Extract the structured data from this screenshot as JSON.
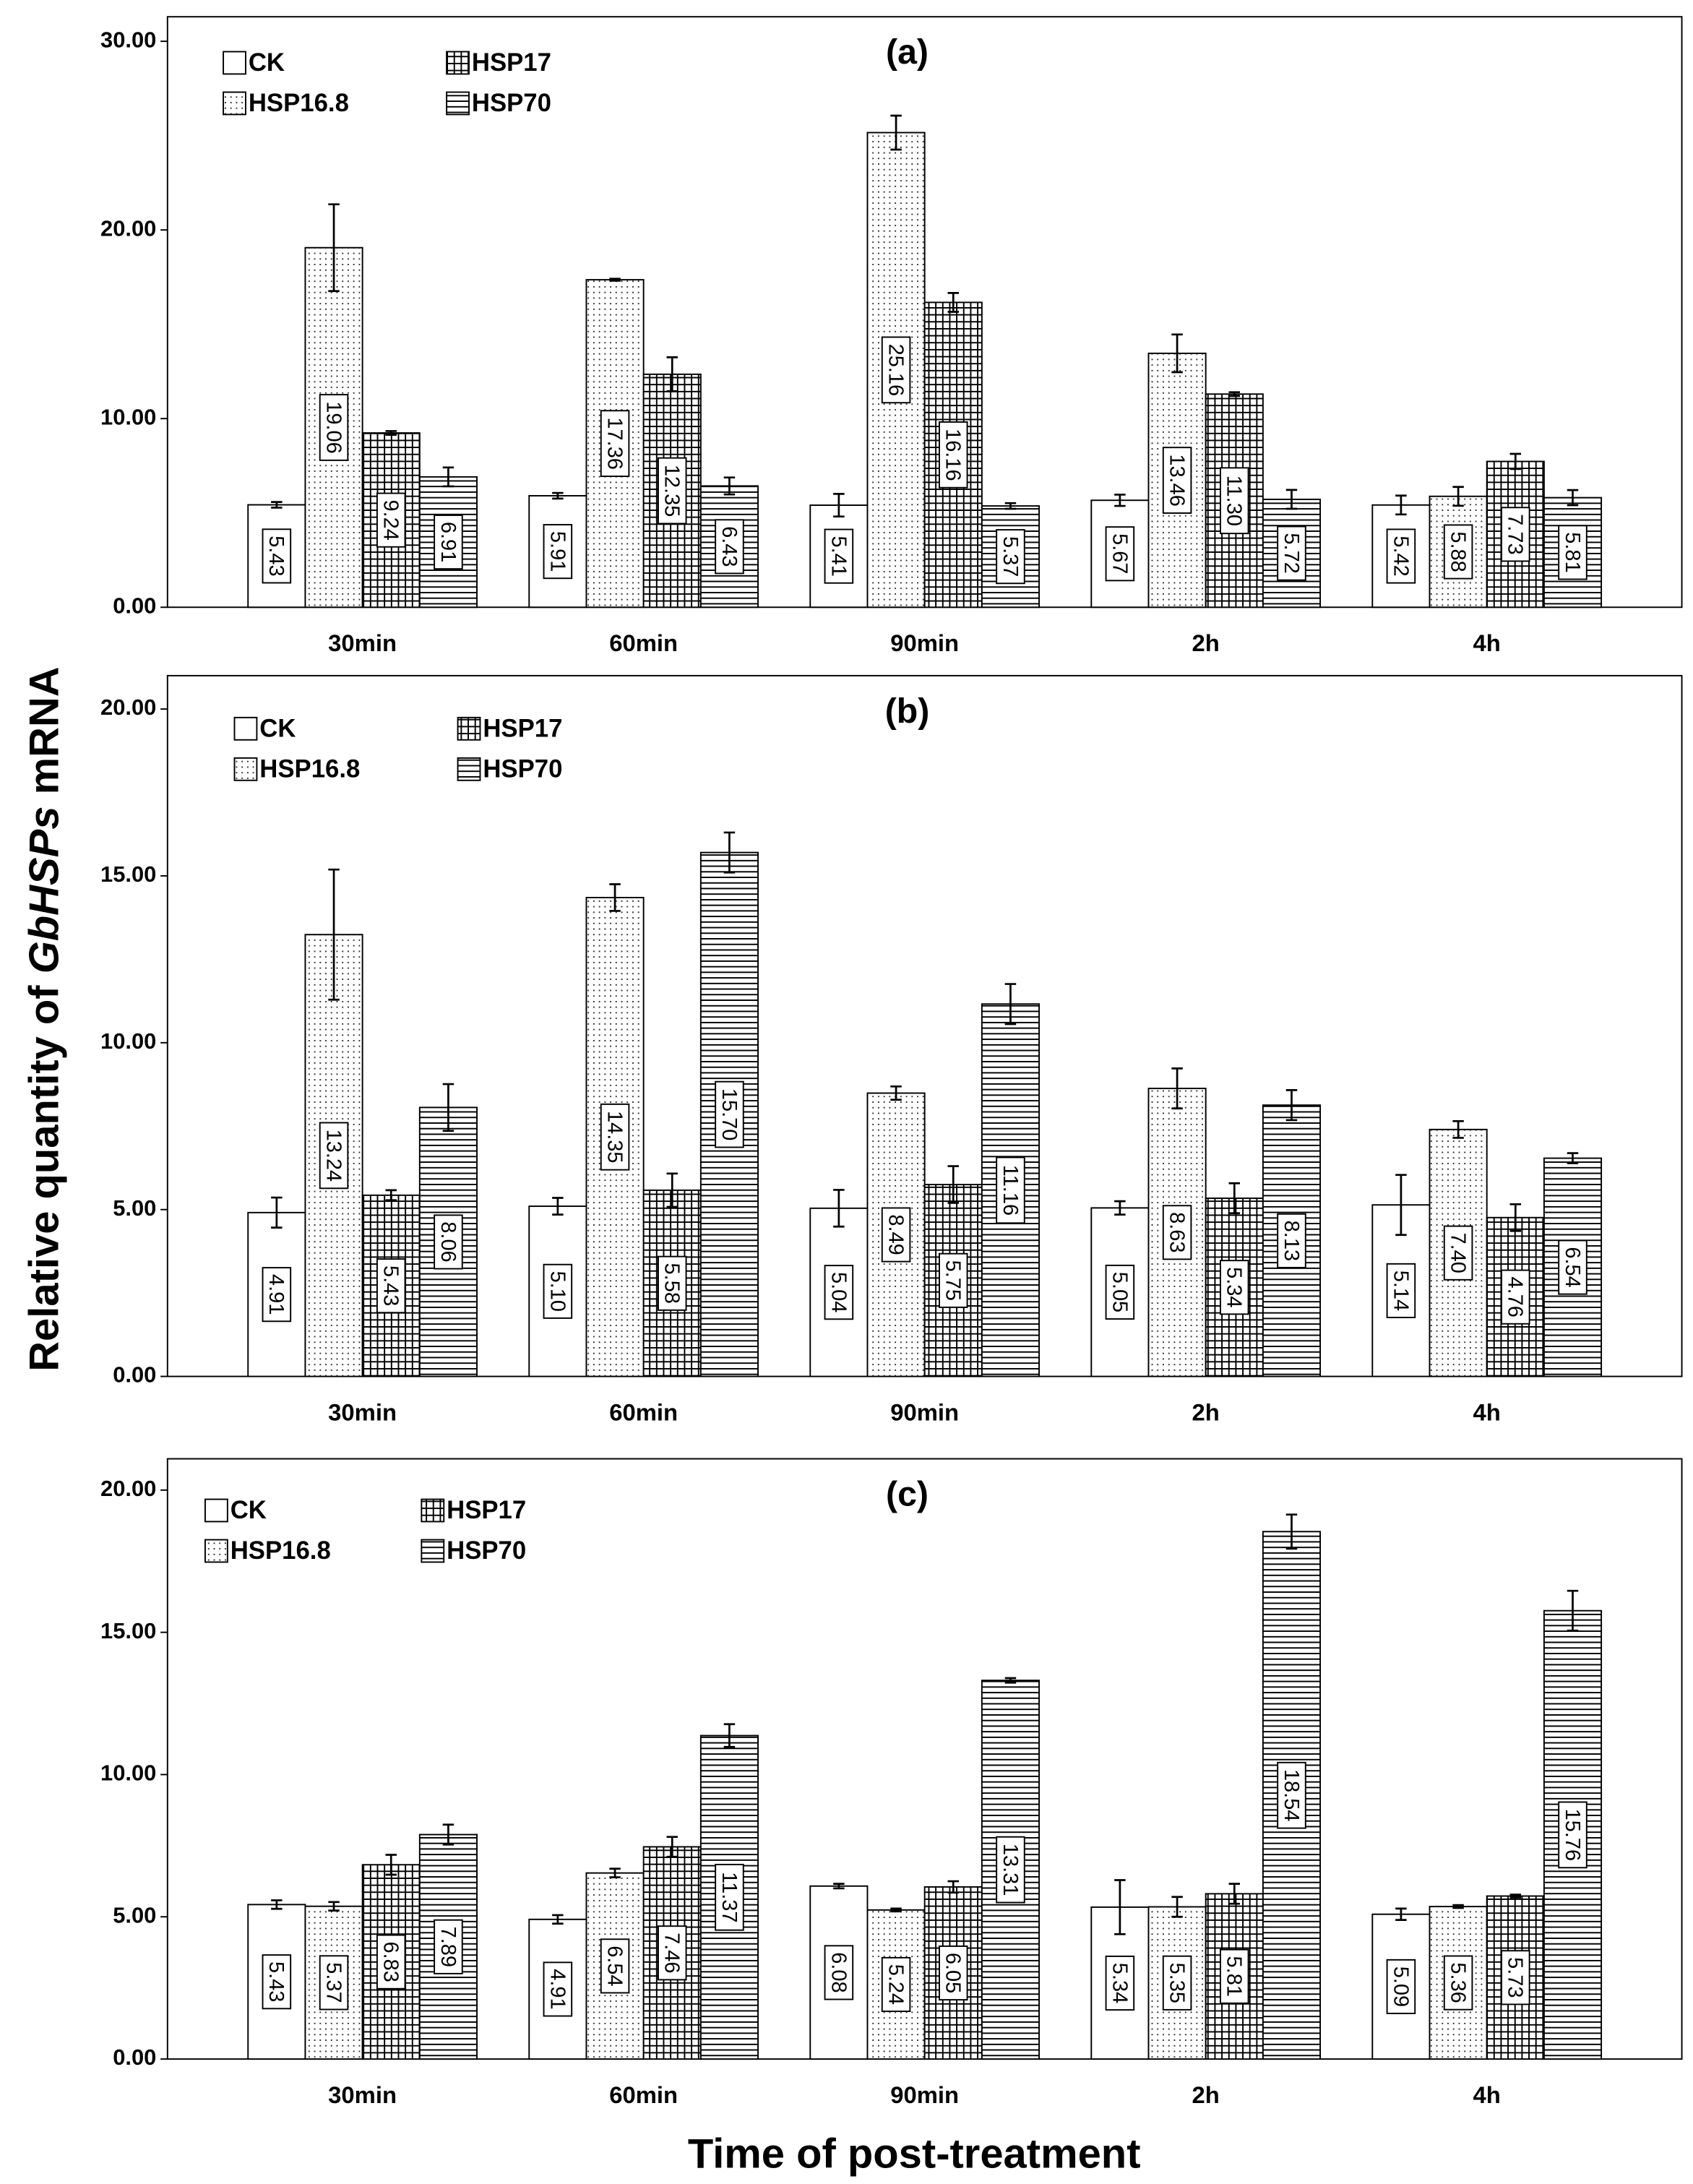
{
  "chart_data": [
    {
      "type": "bar",
      "title": "(a)",
      "categories": [
        "30min",
        "60min",
        "90min",
        "2h",
        "4h"
      ],
      "series": [
        {
          "name": "CK",
          "pattern": "none",
          "values": [
            5.43,
            5.91,
            5.41,
            5.67,
            5.42
          ],
          "value_labels": [
            "5.43",
            "5.91",
            "5.41",
            "5.67",
            "5.42"
          ],
          "errors": [
            0.15,
            0.15,
            0.6,
            0.3,
            0.5
          ]
        },
        {
          "name": "HSP16.8",
          "pattern": "dots",
          "values": [
            19.06,
            17.36,
            25.16,
            13.46,
            5.88
          ],
          "value_labels": [
            "19.06",
            "17.36",
            "25.16",
            "13.46",
            "5.88"
          ],
          "errors": [
            2.3,
            0.05,
            0.9,
            1.0,
            0.5
          ]
        },
        {
          "name": "HSP17",
          "pattern": "grid",
          "values": [
            9.24,
            12.35,
            16.16,
            11.3,
            7.73
          ],
          "value_labels": [
            "9.24",
            "12.35",
            "16.16",
            "11.30",
            "7.73"
          ],
          "errors": [
            0.1,
            0.9,
            0.5,
            0.1,
            0.4
          ]
        },
        {
          "name": "HSP70",
          "pattern": "hlines",
          "values": [
            6.91,
            6.43,
            5.37,
            5.72,
            5.81
          ],
          "value_labels": [
            "6.91",
            "6.43",
            "5.37",
            "5.72",
            "5.81"
          ],
          "errors": [
            0.5,
            0.45,
            0.15,
            0.5,
            0.4
          ]
        }
      ],
      "ylim": [
        0,
        31.3
      ],
      "yticks": [
        {
          "value": 0,
          "label": "0.00"
        },
        {
          "value": 10,
          "label": "10.00"
        },
        {
          "value": 20,
          "label": "20.00"
        },
        {
          "value": 30,
          "label": "30.00"
        }
      ]
    },
    {
      "type": "bar",
      "title": "(b)",
      "y_label": [
        "Relative quantity of ",
        "GbHSPs",
        " mRNA"
      ],
      "categories": [
        "30min",
        "60min",
        "90min",
        "2h",
        "4h"
      ],
      "series": [
        {
          "name": "CK",
          "pattern": "none",
          "values": [
            4.91,
            5.1,
            5.04,
            5.05,
            5.14
          ],
          "value_labels": [
            "4.91",
            "5.10",
            "5.04",
            "5.05",
            "5.14"
          ],
          "errors": [
            0.45,
            0.25,
            0.55,
            0.2,
            0.9
          ]
        },
        {
          "name": "HSP16.8",
          "pattern": "dots",
          "values": [
            13.24,
            14.35,
            8.49,
            8.63,
            7.4
          ],
          "value_labels": [
            "13.24",
            "14.35",
            "8.49",
            "8.63",
            "7.40"
          ],
          "errors": [
            1.95,
            0.4,
            0.2,
            0.6,
            0.25
          ]
        },
        {
          "name": "HSP17",
          "pattern": "grid",
          "values": [
            5.43,
            5.58,
            5.75,
            5.34,
            4.76
          ],
          "value_labels": [
            "5.43",
            "5.58",
            "5.75",
            "5.34",
            "4.76"
          ],
          "errors": [
            0.15,
            0.5,
            0.55,
            0.45,
            0.4
          ]
        },
        {
          "name": "HSP70",
          "pattern": "hlines",
          "values": [
            8.06,
            15.7,
            11.16,
            8.13,
            6.54
          ],
          "value_labels": [
            "8.06",
            "15.70",
            "11.16",
            "8.13",
            "6.54"
          ],
          "errors": [
            0.7,
            0.6,
            0.6,
            0.45,
            0.15
          ]
        }
      ],
      "ylim": [
        0,
        21
      ],
      "yticks": [
        {
          "value": 0,
          "label": "0.00"
        },
        {
          "value": 5,
          "label": "5.00"
        },
        {
          "value": 10,
          "label": "10.00"
        },
        {
          "value": 15,
          "label": "15.00"
        },
        {
          "value": 20,
          "label": "20.00"
        }
      ]
    },
    {
      "type": "bar",
      "title": "(c)",
      "x_label": "Time of post-treatment",
      "categories": [
        "30min",
        "60min",
        "90min",
        "2h",
        "4h"
      ],
      "series": [
        {
          "name": "CK",
          "pattern": "none",
          "values": [
            5.43,
            4.91,
            6.08,
            5.34,
            5.09
          ],
          "value_labels": [
            "5.43",
            "4.91",
            "6.08",
            "5.34",
            "5.09"
          ],
          "errors": [
            0.15,
            0.15,
            0.08,
            0.95,
            0.2
          ]
        },
        {
          "name": "HSP16.8",
          "pattern": "dots",
          "values": [
            5.37,
            6.54,
            5.24,
            5.35,
            5.36
          ],
          "value_labels": [
            "5.37",
            "6.54",
            "5.24",
            "5.35",
            "5.36"
          ],
          "errors": [
            0.15,
            0.15,
            0.05,
            0.35,
            0.05
          ]
        },
        {
          "name": "HSP17",
          "pattern": "grid",
          "values": [
            6.83,
            7.46,
            6.05,
            5.81,
            5.73
          ],
          "value_labels": [
            "6.83",
            "7.46",
            "6.05",
            "5.81",
            "5.73"
          ],
          "errors": [
            0.35,
            0.35,
            0.2,
            0.35,
            0.05
          ]
        },
        {
          "name": "HSP70",
          "pattern": "hlines",
          "values": [
            7.89,
            11.37,
            13.31,
            18.54,
            15.76
          ],
          "value_labels": [
            "7.89",
            "11.37",
            "13.31",
            "18.54",
            "15.76"
          ],
          "errors": [
            0.35,
            0.4,
            0.08,
            0.6,
            0.7
          ]
        }
      ],
      "ylim": [
        0,
        21.1
      ],
      "yticks": [
        {
          "value": 0,
          "label": "0.00"
        },
        {
          "value": 5,
          "label": "5.00"
        },
        {
          "value": 10,
          "label": "10.00"
        },
        {
          "value": 15,
          "label": "15.00"
        },
        {
          "value": 20,
          "label": "20.00"
        }
      ]
    }
  ]
}
